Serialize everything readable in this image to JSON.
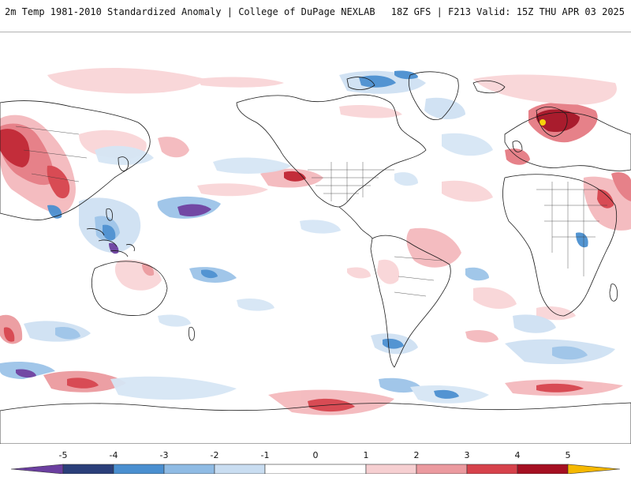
{
  "header": {
    "title": "2m Temp 1981-2010 Standardized Anomaly | College of DuPage NEXLAB",
    "run_info": "18Z GFS | F213 Valid: 15Z THU APR 03 2025"
  },
  "legend": {
    "ticks": [
      "-5",
      "-4",
      "-3",
      "-2",
      "-1",
      "0",
      "1",
      "2",
      "3",
      "4",
      "5"
    ],
    "colors": [
      "#6b3fa0",
      "#2b3f7a",
      "#4a8fd0",
      "#8fbbe4",
      "#c9ddf1",
      "#ffffff",
      "#f6cfd1",
      "#eb9a9f",
      "#d6424b",
      "#a51022",
      "#6d0010",
      "#f5b800"
    ]
  },
  "map": {
    "projection": "Cylindrical Equidistant",
    "palette": {
      "warm_light": "#f9d5d7",
      "warm_mid": "#ee9ea4",
      "warm_strong": "#d63a45",
      "warm_extreme": "#8a0a1a",
      "cold_light": "#d6e6f5",
      "cold_mid": "#9cc4e8",
      "cold_strong": "#4a8fd0",
      "cold_extreme": "#6b3fa0"
    }
  }
}
